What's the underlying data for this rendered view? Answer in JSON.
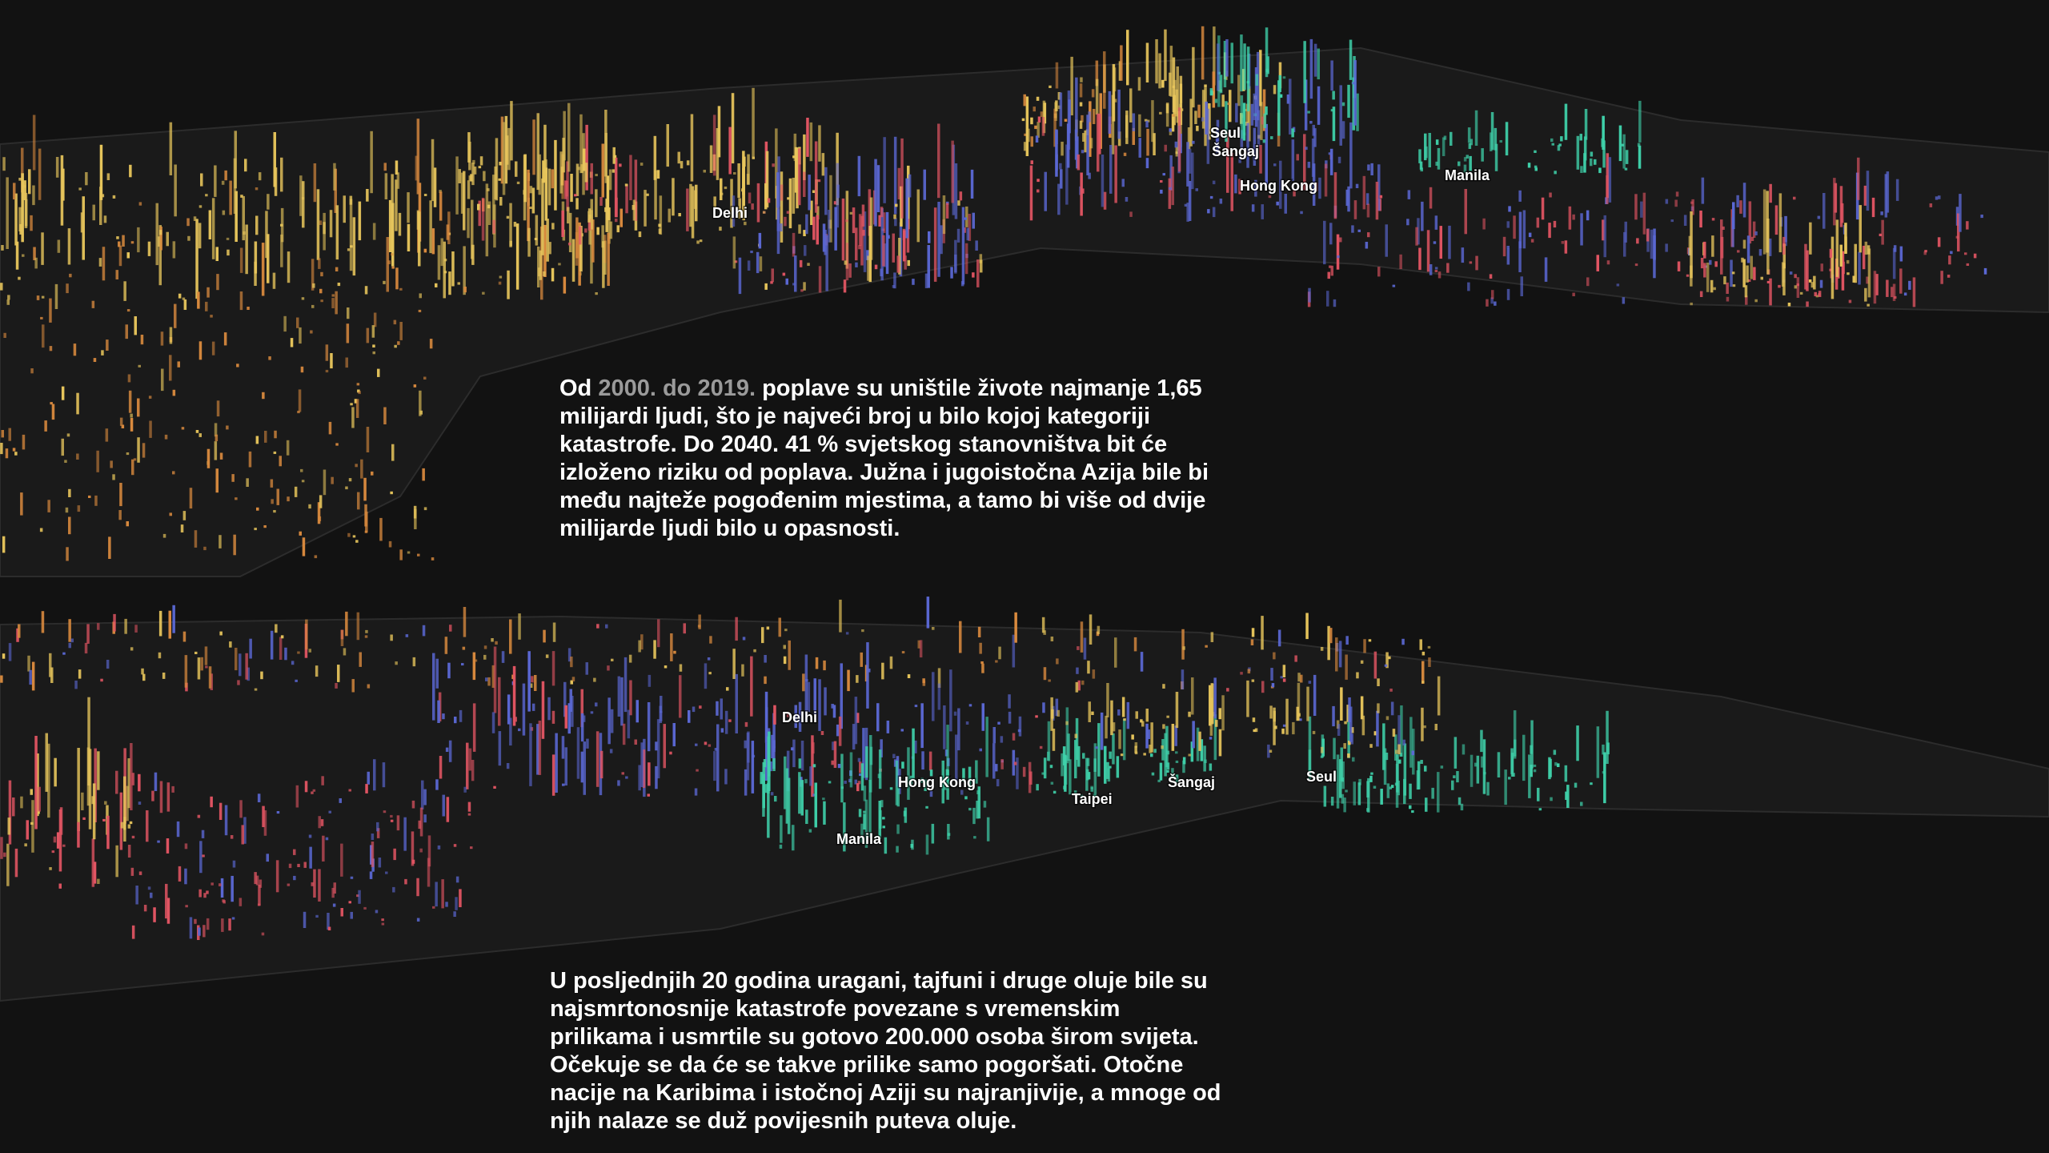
{
  "maps": [
    {
      "labels": [
        "Seul",
        "Šangaj",
        "Hong Kong",
        "Manila",
        "Delhi"
      ]
    },
    {
      "labels": [
        "Delhi",
        "Hong Kong",
        "Taipei",
        "Šangaj",
        "Seul",
        "Manila"
      ]
    }
  ],
  "paragraphs": [
    {
      "lines": [
        [
          {
            "text": "Od "
          },
          {
            "text": "2000. do 2019.",
            "muted": true
          },
          {
            "text": " poplave su uništile živote najmanje 1,65"
          }
        ],
        [
          {
            "text": "milijardi ljudi, što je najveći broj u bilo kojoj kategoriji"
          }
        ],
        [
          {
            "text": "katastrofe. Do 2040. 41 % svjetskog stanovništva bit će"
          }
        ],
        [
          {
            "text": "izloženo riziku od poplava. Južna i jugoistočna Azija bile bi"
          }
        ],
        [
          {
            "text": "među najteže pogođenim mjestima, a tamo bi više od dvije"
          }
        ],
        [
          {
            "text": "milijarde ljudi bilo u opasnosti."
          }
        ]
      ]
    },
    {
      "lines": [
        [
          {
            "text": "U posljednjih 20 godina uragani, tajfuni i druge oluje bile su"
          }
        ],
        [
          {
            "text": "najsmrtonosnije katastrofe povezane s vremenskim"
          }
        ],
        [
          {
            "text": "prilikama i usmrtile su gotovo 200.000 osoba širom svijeta."
          }
        ],
        [
          {
            "text": "Očekuje se da će se takve prilike samo pogoršati. Otočne"
          }
        ],
        [
          {
            "text": "nacije na Karibima i istočnoj Aziji su najranjivije, a mnoge od"
          }
        ],
        [
          {
            "text": "njih nalaze se duž povijesnih puteva oluje."
          }
        ]
      ]
    }
  ]
}
